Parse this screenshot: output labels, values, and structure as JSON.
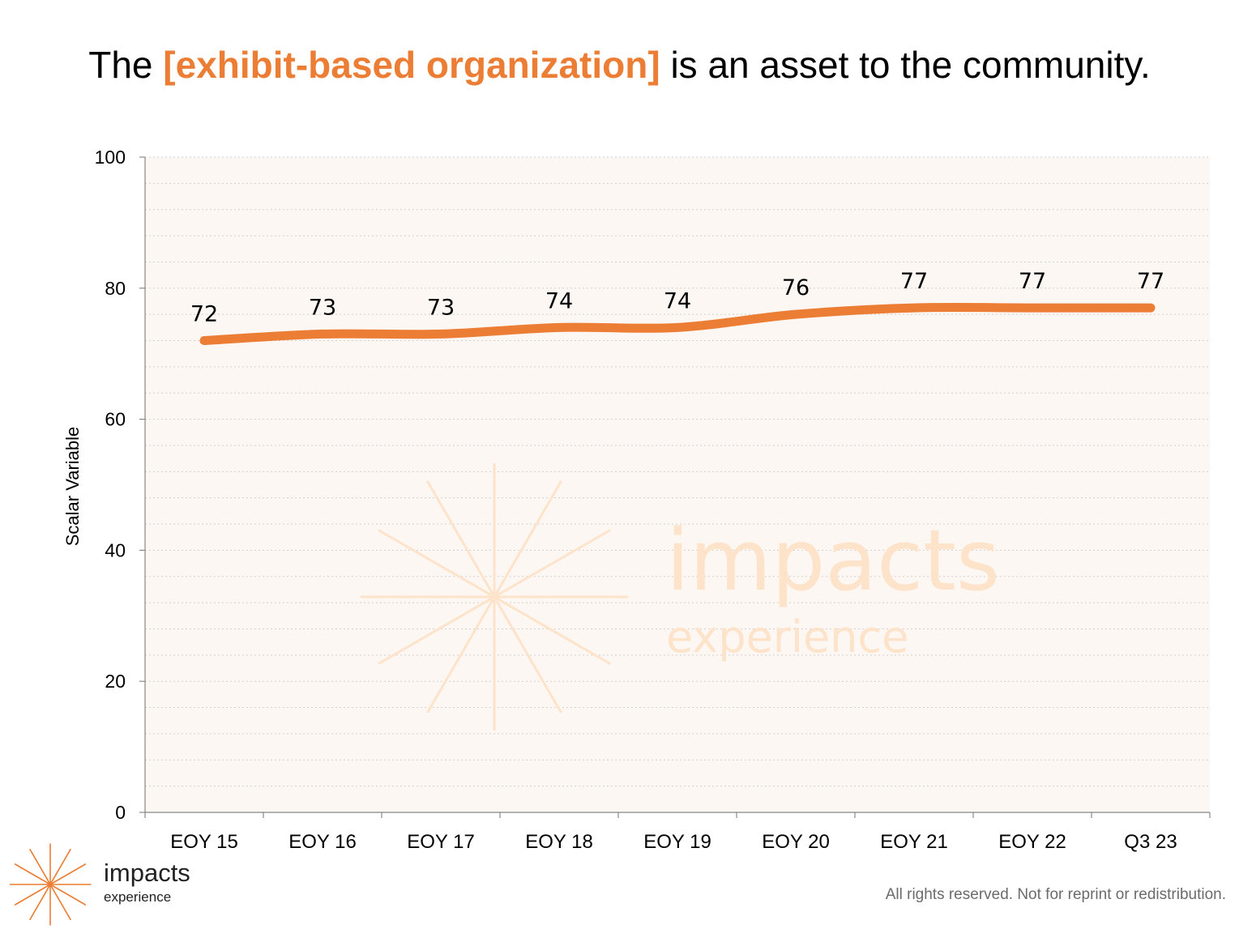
{
  "title": {
    "prefix": "The ",
    "highlight": "[exhibit-based organization]",
    "suffix": " is an asset to the community."
  },
  "colors": {
    "accent": "#ec7d34",
    "plot_background": "#fdf7f3",
    "watermark": "#fde3c9",
    "grid": "#d0d0d0"
  },
  "chart_data": {
    "type": "line",
    "categories": [
      "EOY 15",
      "EOY 16",
      "EOY 17",
      "EOY 18",
      "EOY 19",
      "EOY 20",
      "EOY 21",
      "EOY 22",
      "Q3 23"
    ],
    "series": [
      {
        "values": [
          72,
          73,
          73,
          74,
          74,
          76,
          77,
          77,
          77
        ],
        "color": "#ec7d34"
      }
    ],
    "data_labels": [
      "72",
      "73",
      "73",
      "74",
      "74",
      "76",
      "77",
      "77",
      "77"
    ],
    "ylabel": "Scalar Variable",
    "xlabel": "",
    "ylim": [
      0,
      100
    ],
    "yticks": [
      0,
      20,
      40,
      60,
      80,
      100
    ],
    "grid": true,
    "smooth": true
  },
  "watermark": {
    "word": "impacts",
    "sub": "experience"
  },
  "brand": {
    "word": "impacts",
    "sub": "experience",
    "icon": "starburst-icon"
  },
  "footer": "All rights reserved. Not for reprint or redistribution."
}
